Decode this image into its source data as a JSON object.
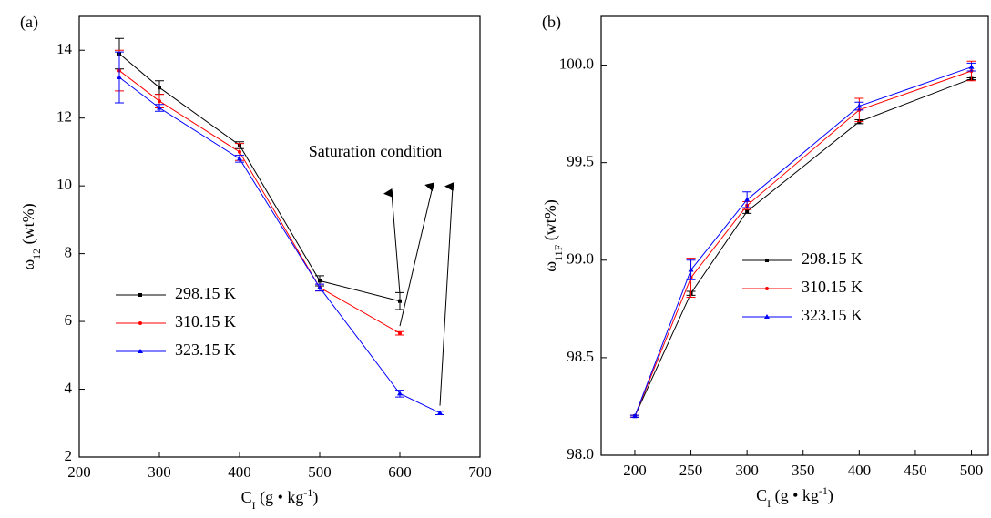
{
  "chart_data": [
    {
      "type": "line",
      "panel": "(a)",
      "xlabel": [
        "C",
        "I",
        " (g • kg",
        "-1",
        ")"
      ],
      "ylabel": [
        "ω",
        "12",
        " (wt%)"
      ],
      "xlim": [
        200,
        700
      ],
      "xticks": [
        200,
        300,
        400,
        500,
        600,
        700
      ],
      "ylim": [
        2,
        15
      ],
      "yticks": [
        2,
        4,
        6,
        8,
        10,
        12,
        14
      ],
      "legend": "lower left",
      "annotation": "Saturation condition",
      "series": [
        {
          "name": "298.15 K",
          "color": "#000000",
          "marker": "square",
          "x": [
            250,
            300,
            400,
            500,
            600
          ],
          "values": [
            13.9,
            12.9,
            11.2,
            7.2,
            6.6
          ],
          "errors": [
            0.45,
            0.2,
            0.1,
            0.15,
            0.25
          ]
        },
        {
          "name": "310.15 K",
          "color": "#ff0000",
          "marker": "circle",
          "x": [
            250,
            300,
            400,
            500,
            600
          ],
          "values": [
            13.4,
            12.5,
            11.0,
            7.0,
            5.65
          ],
          "errors": [
            0.6,
            0.2,
            0.25,
            0.1,
            0.05
          ]
        },
        {
          "name": "323.15 K",
          "color": "#0000ff",
          "marker": "triangle",
          "x": [
            250,
            300,
            400,
            500,
            600,
            650
          ],
          "values": [
            13.2,
            12.3,
            10.8,
            7.0,
            3.87,
            3.3
          ],
          "errors": [
            0.75,
            0.1,
            0.1,
            0.1,
            0.1,
            0.05
          ]
        }
      ]
    },
    {
      "type": "line",
      "panel": "(b)",
      "xlabel": [
        "C",
        "I",
        " (g • kg",
        "-1",
        ")"
      ],
      "ylabel": [
        "ω",
        "11F",
        " (wt%)"
      ],
      "xlim": [
        170,
        515
      ],
      "xticks": [
        200,
        250,
        300,
        350,
        400,
        450,
        500
      ],
      "ylim": [
        98,
        100.25
      ],
      "yticks": [
        {
          "value": 98,
          "label": "98.0"
        },
        98.5,
        {
          "value": 99,
          "label": "99.0"
        },
        99.5,
        {
          "value": 100,
          "label": "100.0"
        }
      ],
      "legend": "center",
      "series": [
        {
          "name": "298.15 K",
          "color": "#000000",
          "marker": "square",
          "x": [
            200,
            250,
            300,
            400,
            500
          ],
          "values": [
            98.2,
            98.83,
            99.25,
            99.71,
            99.93
          ],
          "errors": [
            0.005,
            0.01,
            0.01,
            0.01,
            0.005
          ]
        },
        {
          "name": "310.15 K",
          "color": "#ff0000",
          "marker": "circle",
          "x": [
            200,
            250,
            300,
            400,
            500
          ],
          "values": [
            98.2,
            98.91,
            99.28,
            99.77,
            99.97
          ],
          "errors": [
            0.005,
            0.1,
            0.02,
            0.06,
            0.05
          ]
        },
        {
          "name": "323.15 K",
          "color": "#0000ff",
          "marker": "triangle",
          "x": [
            200,
            250,
            300,
            400,
            500
          ],
          "values": [
            98.2,
            98.95,
            99.31,
            99.79,
            99.99
          ],
          "errors": [
            0.005,
            0.05,
            0.04,
            0.02,
            0.02
          ]
        }
      ]
    }
  ]
}
